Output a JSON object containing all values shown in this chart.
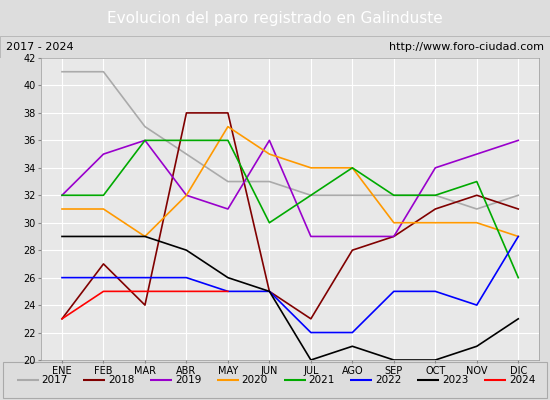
{
  "title": "Evolucion del paro registrado en Galinduste",
  "subtitle_left": "2017 - 2024",
  "subtitle_right": "http://www.foro-ciudad.com",
  "months": [
    "ENE",
    "FEB",
    "MAR",
    "ABR",
    "MAY",
    "JUN",
    "JUL",
    "AGO",
    "SEP",
    "OCT",
    "NOV",
    "DIC"
  ],
  "ylim": [
    20,
    42
  ],
  "yticks": [
    20,
    22,
    24,
    26,
    28,
    30,
    32,
    34,
    36,
    38,
    40,
    42
  ],
  "series": {
    "2017": {
      "color": "#aaaaaa",
      "values": [
        41,
        41,
        37,
        35,
        33,
        33,
        32,
        32,
        32,
        32,
        31,
        32
      ]
    },
    "2018": {
      "color": "#800000",
      "values": [
        23,
        27,
        24,
        38,
        38,
        25,
        23,
        28,
        29,
        31,
        32,
        31
      ]
    },
    "2019": {
      "color": "#9900cc",
      "values": [
        32,
        35,
        36,
        32,
        31,
        36,
        29,
        29,
        29,
        34,
        35,
        36
      ]
    },
    "2020": {
      "color": "#ff9900",
      "values": [
        31,
        31,
        29,
        32,
        37,
        35,
        34,
        34,
        30,
        30,
        30,
        29
      ]
    },
    "2021": {
      "color": "#00aa00",
      "values": [
        32,
        32,
        36,
        36,
        36,
        30,
        32,
        34,
        32,
        32,
        33,
        26
      ]
    },
    "2022": {
      "color": "#0000ff",
      "values": [
        26,
        26,
        26,
        26,
        25,
        25,
        22,
        22,
        25,
        25,
        24,
        29
      ]
    },
    "2023": {
      "color": "#000000",
      "values": [
        29,
        29,
        29,
        28,
        26,
        25,
        20,
        21,
        20,
        20,
        21,
        23
      ]
    },
    "2024": {
      "color": "#ff0000",
      "values": [
        23,
        25,
        25,
        25,
        25,
        null,
        null,
        null,
        null,
        null,
        null,
        null
      ]
    }
  },
  "title_bg": "#4e7ab5",
  "title_color": "white",
  "subtitle_bg": "#dddddd",
  "plot_bg": "#e8e8e8",
  "grid_color": "white",
  "legend_bg": "#dddddd",
  "title_fontsize": 11,
  "subtitle_fontsize": 8,
  "tick_fontsize": 7,
  "legend_fontsize": 7.5
}
